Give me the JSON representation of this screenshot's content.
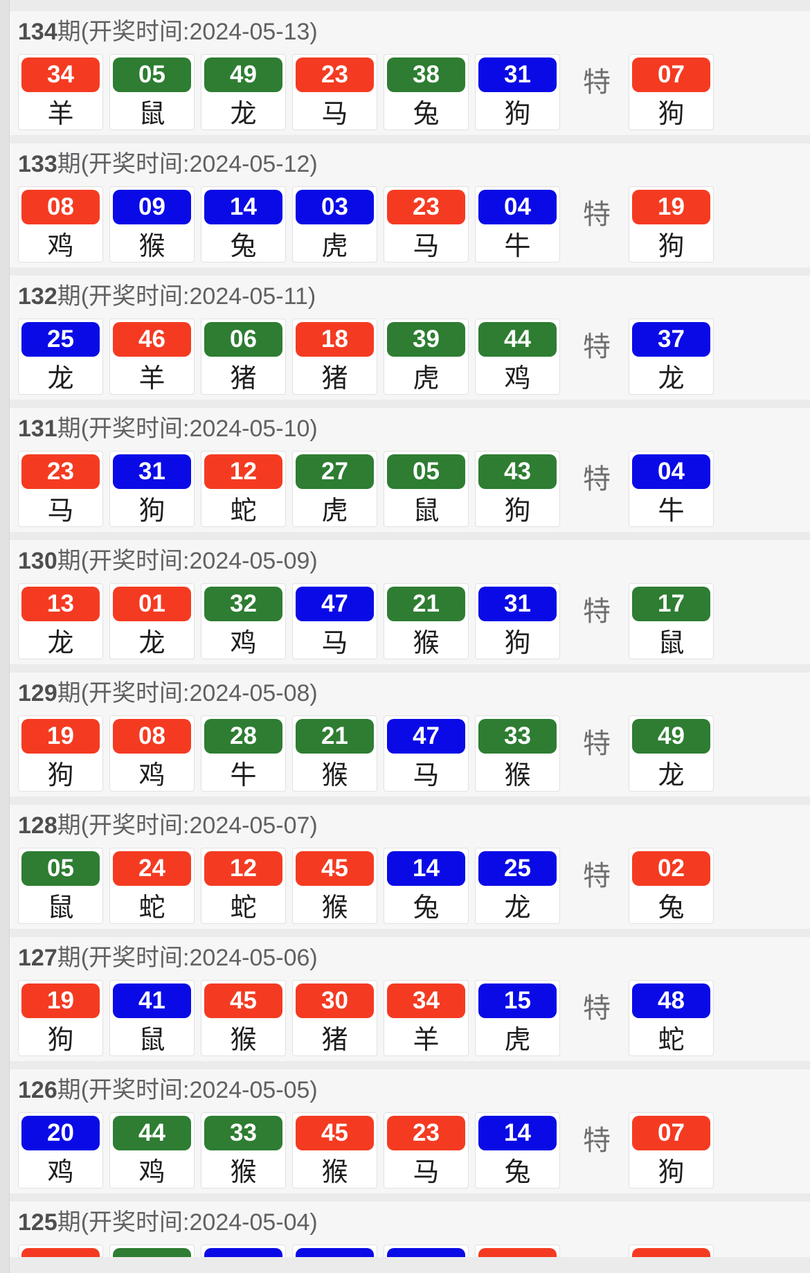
{
  "special_label": "特",
  "colors": {
    "red": "#f43b22",
    "green": "#2e7d32",
    "blue": "#0a0ae6"
  },
  "draws": [
    {
      "issue": "134",
      "header_rest": "期(开奖时间:2024-05-13)",
      "numbers": [
        {
          "num": "34",
          "color": "red",
          "zodiac": "羊"
        },
        {
          "num": "05",
          "color": "green",
          "zodiac": "鼠"
        },
        {
          "num": "49",
          "color": "green",
          "zodiac": "龙"
        },
        {
          "num": "23",
          "color": "red",
          "zodiac": "马"
        },
        {
          "num": "38",
          "color": "green",
          "zodiac": "兔"
        },
        {
          "num": "31",
          "color": "blue",
          "zodiac": "狗"
        }
      ],
      "special": {
        "num": "07",
        "color": "red",
        "zodiac": "狗"
      }
    },
    {
      "issue": "133",
      "header_rest": "期(开奖时间:2024-05-12)",
      "numbers": [
        {
          "num": "08",
          "color": "red",
          "zodiac": "鸡"
        },
        {
          "num": "09",
          "color": "blue",
          "zodiac": "猴"
        },
        {
          "num": "14",
          "color": "blue",
          "zodiac": "兔"
        },
        {
          "num": "03",
          "color": "blue",
          "zodiac": "虎"
        },
        {
          "num": "23",
          "color": "red",
          "zodiac": "马"
        },
        {
          "num": "04",
          "color": "blue",
          "zodiac": "牛"
        }
      ],
      "special": {
        "num": "19",
        "color": "red",
        "zodiac": "狗"
      }
    },
    {
      "issue": "132",
      "header_rest": "期(开奖时间:2024-05-11)",
      "numbers": [
        {
          "num": "25",
          "color": "blue",
          "zodiac": "龙"
        },
        {
          "num": "46",
          "color": "red",
          "zodiac": "羊"
        },
        {
          "num": "06",
          "color": "green",
          "zodiac": "猪"
        },
        {
          "num": "18",
          "color": "red",
          "zodiac": "猪"
        },
        {
          "num": "39",
          "color": "green",
          "zodiac": "虎"
        },
        {
          "num": "44",
          "color": "green",
          "zodiac": "鸡"
        }
      ],
      "special": {
        "num": "37",
        "color": "blue",
        "zodiac": "龙"
      }
    },
    {
      "issue": "131",
      "header_rest": "期(开奖时间:2024-05-10)",
      "numbers": [
        {
          "num": "23",
          "color": "red",
          "zodiac": "马"
        },
        {
          "num": "31",
          "color": "blue",
          "zodiac": "狗"
        },
        {
          "num": "12",
          "color": "red",
          "zodiac": "蛇"
        },
        {
          "num": "27",
          "color": "green",
          "zodiac": "虎"
        },
        {
          "num": "05",
          "color": "green",
          "zodiac": "鼠"
        },
        {
          "num": "43",
          "color": "green",
          "zodiac": "狗"
        }
      ],
      "special": {
        "num": "04",
        "color": "blue",
        "zodiac": "牛"
      }
    },
    {
      "issue": "130",
      "header_rest": "期(开奖时间:2024-05-09)",
      "numbers": [
        {
          "num": "13",
          "color": "red",
          "zodiac": "龙"
        },
        {
          "num": "01",
          "color": "red",
          "zodiac": "龙"
        },
        {
          "num": "32",
          "color": "green",
          "zodiac": "鸡"
        },
        {
          "num": "47",
          "color": "blue",
          "zodiac": "马"
        },
        {
          "num": "21",
          "color": "green",
          "zodiac": "猴"
        },
        {
          "num": "31",
          "color": "blue",
          "zodiac": "狗"
        }
      ],
      "special": {
        "num": "17",
        "color": "green",
        "zodiac": "鼠"
      }
    },
    {
      "issue": "129",
      "header_rest": "期(开奖时间:2024-05-08)",
      "numbers": [
        {
          "num": "19",
          "color": "red",
          "zodiac": "狗"
        },
        {
          "num": "08",
          "color": "red",
          "zodiac": "鸡"
        },
        {
          "num": "28",
          "color": "green",
          "zodiac": "牛"
        },
        {
          "num": "21",
          "color": "green",
          "zodiac": "猴"
        },
        {
          "num": "47",
          "color": "blue",
          "zodiac": "马"
        },
        {
          "num": "33",
          "color": "green",
          "zodiac": "猴"
        }
      ],
      "special": {
        "num": "49",
        "color": "green",
        "zodiac": "龙"
      }
    },
    {
      "issue": "128",
      "header_rest": "期(开奖时间:2024-05-07)",
      "numbers": [
        {
          "num": "05",
          "color": "green",
          "zodiac": "鼠"
        },
        {
          "num": "24",
          "color": "red",
          "zodiac": "蛇"
        },
        {
          "num": "12",
          "color": "red",
          "zodiac": "蛇"
        },
        {
          "num": "45",
          "color": "red",
          "zodiac": "猴"
        },
        {
          "num": "14",
          "color": "blue",
          "zodiac": "兔"
        },
        {
          "num": "25",
          "color": "blue",
          "zodiac": "龙"
        }
      ],
      "special": {
        "num": "02",
        "color": "red",
        "zodiac": "兔"
      }
    },
    {
      "issue": "127",
      "header_rest": "期(开奖时间:2024-05-06)",
      "numbers": [
        {
          "num": "19",
          "color": "red",
          "zodiac": "狗"
        },
        {
          "num": "41",
          "color": "blue",
          "zodiac": "鼠"
        },
        {
          "num": "45",
          "color": "red",
          "zodiac": "猴"
        },
        {
          "num": "30",
          "color": "red",
          "zodiac": "猪"
        },
        {
          "num": "34",
          "color": "red",
          "zodiac": "羊"
        },
        {
          "num": "15",
          "color": "blue",
          "zodiac": "虎"
        }
      ],
      "special": {
        "num": "48",
        "color": "blue",
        "zodiac": "蛇"
      }
    },
    {
      "issue": "126",
      "header_rest": "期(开奖时间:2024-05-05)",
      "numbers": [
        {
          "num": "20",
          "color": "blue",
          "zodiac": "鸡"
        },
        {
          "num": "44",
          "color": "green",
          "zodiac": "鸡"
        },
        {
          "num": "33",
          "color": "green",
          "zodiac": "猴"
        },
        {
          "num": "45",
          "color": "red",
          "zodiac": "猴"
        },
        {
          "num": "23",
          "color": "red",
          "zodiac": "马"
        },
        {
          "num": "14",
          "color": "blue",
          "zodiac": "兔"
        }
      ],
      "special": {
        "num": "07",
        "color": "red",
        "zodiac": "狗"
      }
    },
    {
      "issue": "125",
      "header_rest": "期(开奖时间:2024-05-04)",
      "partial": true,
      "numbers": [
        {
          "num": "",
          "color": "red"
        },
        {
          "num": "",
          "color": "green"
        },
        {
          "num": "",
          "color": "blue"
        },
        {
          "num": "",
          "color": "blue"
        },
        {
          "num": "",
          "color": "blue"
        },
        {
          "num": "",
          "color": "red"
        }
      ],
      "special": {
        "num": "",
        "color": "red"
      }
    }
  ]
}
